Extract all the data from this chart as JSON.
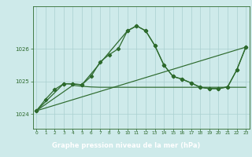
{
  "title": "Graphe pression niveau de la mer (hPa)",
  "background_color": "#ceeaea",
  "plot_bg_color": "#ceeaea",
  "grid_color": "#aad0d0",
  "line_color": "#2d6a2d",
  "title_bg_color": "#2d6a2d",
  "title_text_color": "#ffffff",
  "x_ticks": [
    0,
    1,
    2,
    3,
    4,
    5,
    6,
    7,
    8,
    9,
    10,
    11,
    12,
    13,
    14,
    15,
    16,
    17,
    18,
    19,
    20,
    21,
    22,
    23
  ],
  "y_ticks": [
    1024,
    1025,
    1026
  ],
  "ylim": [
    1023.55,
    1027.3
  ],
  "xlim": [
    -0.4,
    23.4
  ],
  "series1_x": [
    0,
    1,
    2,
    3,
    4,
    5,
    6,
    7,
    8,
    9,
    10,
    11,
    12,
    13,
    14,
    15,
    16,
    17,
    18,
    19,
    20,
    21,
    22,
    23
  ],
  "series1_y": [
    1024.1,
    1024.45,
    1024.75,
    1024.93,
    1024.92,
    1024.9,
    1025.15,
    1025.6,
    1025.82,
    1026.0,
    1026.55,
    1026.7,
    1026.55,
    1026.1,
    1025.5,
    1025.15,
    1025.07,
    1024.95,
    1024.82,
    1024.78,
    1024.78,
    1024.83,
    1025.35,
    1026.05
  ],
  "series2_x": [
    0,
    3,
    4,
    5,
    10,
    11,
    12,
    13,
    14,
    15,
    16,
    17,
    18,
    19,
    20,
    21,
    22,
    23
  ],
  "series2_y": [
    1024.1,
    1024.93,
    1024.92,
    1024.9,
    1026.55,
    1026.7,
    1026.55,
    1026.1,
    1025.5,
    1025.15,
    1025.07,
    1024.95,
    1024.82,
    1024.78,
    1024.78,
    1024.83,
    1025.35,
    1026.05
  ],
  "series3_x": [
    0,
    23
  ],
  "series3_y": [
    1024.1,
    1026.05
  ],
  "series4_x": [
    0,
    4,
    5,
    6,
    7,
    8,
    9,
    10,
    11,
    12,
    13,
    14,
    15,
    16,
    17,
    18,
    19,
    20,
    21,
    22,
    23
  ],
  "series4_y": [
    1024.1,
    1024.88,
    1024.85,
    1024.83,
    1024.82,
    1024.82,
    1024.82,
    1024.82,
    1024.82,
    1024.82,
    1024.82,
    1024.82,
    1024.82,
    1024.82,
    1024.82,
    1024.82,
    1024.82,
    1024.82,
    1024.82,
    1024.82,
    1024.82
  ]
}
